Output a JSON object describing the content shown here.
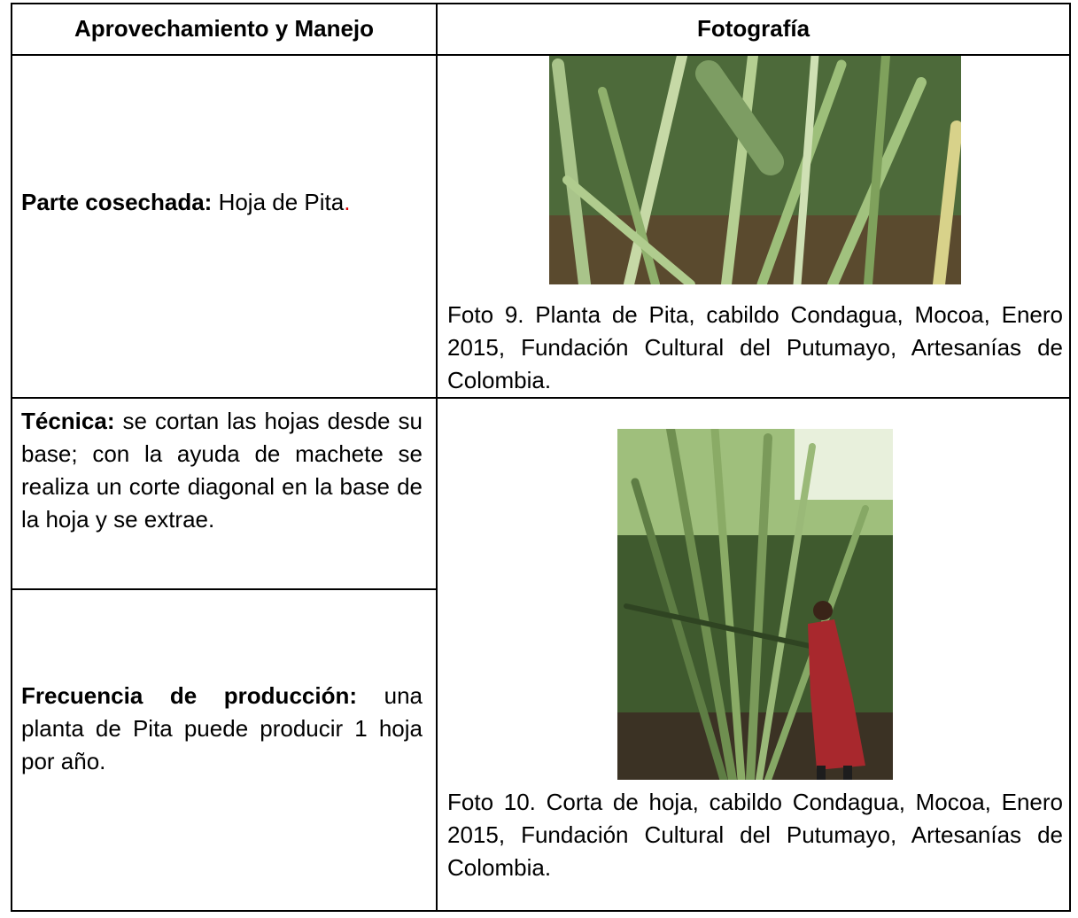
{
  "table": {
    "header": [
      "Aprovechamiento y Manejo",
      "Fotografía"
    ],
    "rows": [
      {
        "label": "Parte cosechada:",
        "text": "Hoja de Pita",
        "text_end": ".",
        "caption": "Foto 9. Planta de Pita, cabildo Condagua, Mocoa, Enero 2015, Fundación Cultural del Putumayo, Artesanías de Colombia."
      },
      {
        "label": "Técnica:",
        "text": "se cortan las hojas desde su base; con la ayuda de machete se realiza un corte diagonal en la base de la hoja y se extrae.",
        "caption": "Foto 10. Corta de hoja, cabildo Condagua, Mocoa, Enero 2015, Fundación Cultural del Putumayo, Artesanías de Colombia."
      },
      {
        "label": "Frecuencia de producción:",
        "text": "una planta de Pita puede producir 1 hoja por año."
      }
    ]
  }
}
